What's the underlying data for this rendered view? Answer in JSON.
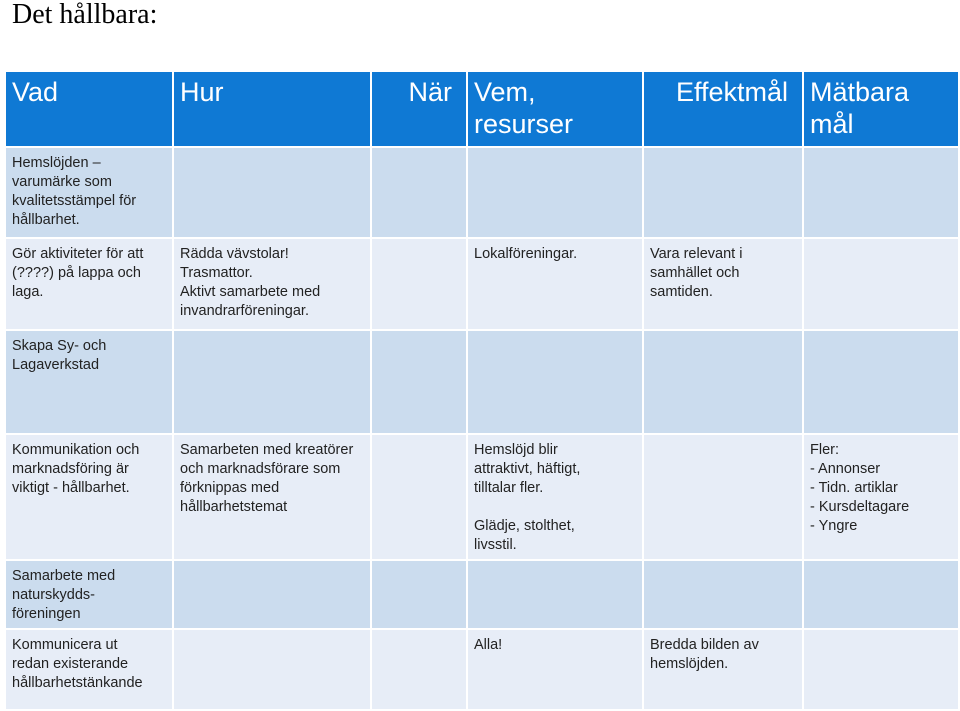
{
  "page": {
    "title": "Det hållbara:"
  },
  "table": {
    "headers": [
      "Vad",
      "Hur",
      "När",
      "Vem,\nresurser",
      "Effektmål",
      "Mätbara mål"
    ],
    "rows": [
      {
        "vad": [
          "Hemslöjden –",
          "varumärke som",
          "kvalitetsstämpel för",
          "hållbarhet."
        ],
        "hur": [],
        "nar": [],
        "vem": [],
        "effekt": [],
        "matbara": []
      },
      {
        "vad": [
          "Gör aktiviteter för att",
          "(????) på lappa och",
          "laga."
        ],
        "hur": [
          "Rädda vävstolar!",
          "Trasmattor.",
          "Aktivt samarbete med",
          "invandrarföreningar."
        ],
        "nar": [],
        "vem": [
          "Lokalföreningar."
        ],
        "effekt": [
          "Vara relevant i",
          "samhället och",
          "samtiden."
        ],
        "matbara": []
      },
      {
        "vad": [
          "Skapa Sy- och",
          "Lagaverkstad"
        ],
        "hur": [],
        "nar": [],
        "vem": [],
        "effekt": [],
        "matbara": []
      },
      {
        "vad": [
          "Kommunikation och",
          "marknadsföring är",
          "viktigt - hållbarhet."
        ],
        "hur": [
          "Samarbeten med kreatörer",
          "och marknadsförare som",
          "förknippas med",
          "hållbarhetstemat"
        ],
        "nar": [],
        "vem": [
          "Hemslöjd blir",
          "attraktivt, häftigt,",
          "tilltalar fler.",
          "",
          "Glädje, stolthet,",
          "livsstil."
        ],
        "effekt": [],
        "matbara": [
          "Fler:",
          "-   Annonser",
          "-   Tidn. artiklar",
          "-   Kursdeltagare",
          "-   Yngre"
        ]
      },
      {
        "vad": [
          "Samarbete med",
          "naturskydds-",
          "föreningen"
        ],
        "hur": [],
        "nar": [],
        "vem": [],
        "effekt": [],
        "matbara": []
      },
      {
        "vad": [
          "Kommunicera ut",
          "redan existerande",
          "hållbarhetstänkande"
        ],
        "hur": [],
        "nar": [],
        "vem": [
          "Alla!"
        ],
        "effekt": [
          "Bredda bilden av",
          "hemslöjden."
        ],
        "matbara": []
      }
    ]
  }
}
